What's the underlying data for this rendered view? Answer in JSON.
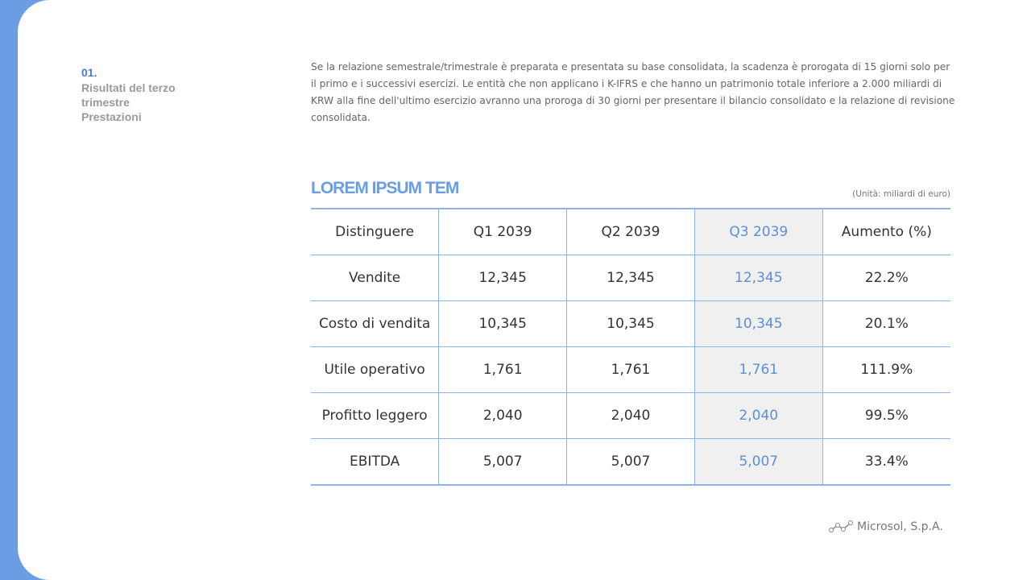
{
  "section": {
    "number": "01.",
    "title_lines": [
      "Risultati del terzo",
      "trimestre",
      "Prestazioni"
    ]
  },
  "paragraph": "Se la relazione semestrale/trimestrale è preparata e presentata su base consolidata, la scadenza è prorogata di 15 giorni solo per il primo e i successivi esercizi. Le entità che non applicano i K-IFRS e che hanno un patrimonio totale inferiore a 2.000 miliardi di KRW alla fine dell'ultimo esercizio avranno una proroga di 30 giorni per presentare il bilancio consolidato e la relazione di revisione consolidata.",
  "table": {
    "title": "LOREM IPSUM TEM",
    "unit": "(Unità: miliardi di euro)",
    "header": [
      "Distinguere",
      "Q1 2039",
      "Q2 2039",
      "Q3 2039",
      "Aumento (%)"
    ],
    "highlight_column": 3,
    "rows": [
      [
        "Vendite",
        "12,345",
        "12,345",
        "12,345",
        "22.2%"
      ],
      [
        "Costo di vendita",
        "10,345",
        "10,345",
        "10,345",
        "20.1%"
      ],
      [
        "Utile operativo",
        "1,761",
        "1,761",
        "1,761",
        "111.9%"
      ],
      [
        "Profitto leggero",
        "2,040",
        "2,040",
        "2,040",
        "99.5%"
      ],
      [
        "EBITDA",
        "5,007",
        "5,007",
        "5,007",
        "33.4%"
      ]
    ]
  },
  "footer": {
    "logo": "Microsol, S.p.A."
  }
}
